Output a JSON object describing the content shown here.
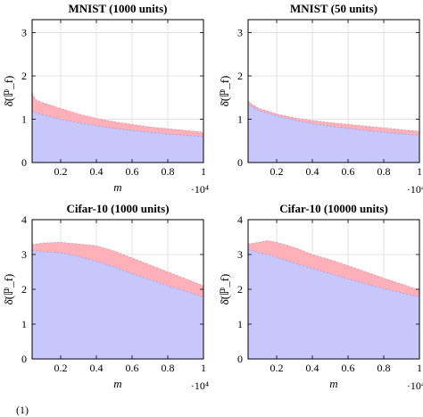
{
  "footnote": "(1)",
  "chart_data": [
    {
      "type": "area",
      "title": "MNIST (1000 units)",
      "xlabel": "m",
      "ylabel": "δ̄(ℙ_f)",
      "x_multiplier": "·10⁴",
      "xlim": [
        0.04,
        1.0
      ],
      "ylim": [
        0,
        3.3
      ],
      "xticks": [
        0.2,
        0.4,
        0.6,
        0.8,
        1
      ],
      "xtick_labels": [
        "0.2",
        "0.4",
        "0.6",
        "0.8",
        "1"
      ],
      "yticks": [
        0,
        1,
        2,
        3
      ],
      "ytick_labels": [
        "0",
        "1",
        "2",
        "3"
      ],
      "grid": true,
      "x": [
        0.04,
        0.06,
        0.1,
        0.2,
        0.3,
        0.4,
        0.5,
        0.6,
        0.7,
        0.8,
        0.9,
        1.0
      ],
      "series": [
        {
          "color": "#ffb0b8",
          "values": [
            1.6,
            1.45,
            1.38,
            1.25,
            1.12,
            1.02,
            0.94,
            0.88,
            0.82,
            0.78,
            0.74,
            0.7
          ]
        },
        {
          "color": "#c7c7fb",
          "values": [
            1.2,
            1.15,
            1.1,
            1.0,
            0.92,
            0.85,
            0.79,
            0.74,
            0.7,
            0.66,
            0.63,
            0.6
          ]
        }
      ]
    },
    {
      "type": "area",
      "title": "MNIST (50 units)",
      "xlabel": "",
      "ylabel": "δ̄(ℙ_f)",
      "x_multiplier": "·10⁴",
      "xlim": [
        0.04,
        1.0
      ],
      "ylim": [
        0,
        3.3
      ],
      "xticks": [
        0.2,
        0.4,
        0.6,
        0.8,
        1
      ],
      "xtick_labels": [
        "0.2",
        "0.4",
        "0.6",
        "0.8",
        "1"
      ],
      "yticks": [
        0,
        1,
        2,
        3
      ],
      "ytick_labels": [
        "0",
        "1",
        "2",
        "3"
      ],
      "grid": true,
      "x": [
        0.04,
        0.06,
        0.1,
        0.2,
        0.3,
        0.4,
        0.5,
        0.6,
        0.7,
        0.8,
        0.9,
        1.0
      ],
      "series": [
        {
          "color": "#ffb0b8",
          "values": [
            1.42,
            1.35,
            1.25,
            1.12,
            1.03,
            0.97,
            0.92,
            0.88,
            0.84,
            0.8,
            0.76,
            0.72
          ]
        },
        {
          "color": "#c7c7fb",
          "values": [
            1.35,
            1.3,
            1.2,
            1.08,
            0.98,
            0.9,
            0.84,
            0.79,
            0.74,
            0.7,
            0.66,
            0.63
          ]
        }
      ]
    },
    {
      "type": "area",
      "title": "Cifar-10 (1000 units)",
      "xlabel": "m",
      "ylabel": "δ̄(ℙ_f)",
      "x_multiplier": "·10⁴",
      "xlim": [
        0.04,
        1.0
      ],
      "ylim": [
        0,
        4
      ],
      "xticks": [
        0.2,
        0.4,
        0.6,
        0.8,
        1
      ],
      "xtick_labels": [
        "0.2",
        "0.4",
        "0.6",
        "0.8",
        "1"
      ],
      "yticks": [
        0,
        1,
        2,
        3,
        4
      ],
      "ytick_labels": [
        "0",
        "1",
        "2",
        "3",
        "4"
      ],
      "grid": true,
      "x": [
        0.04,
        0.1,
        0.2,
        0.3,
        0.4,
        0.5,
        0.6,
        0.7,
        0.8,
        0.9,
        1.0
      ],
      "series": [
        {
          "color": "#ffb0b8",
          "values": [
            3.28,
            3.33,
            3.35,
            3.3,
            3.25,
            3.1,
            2.9,
            2.7,
            2.5,
            2.3,
            2.1
          ]
        },
        {
          "color": "#c7c7fb",
          "values": [
            3.12,
            3.08,
            3.05,
            2.95,
            2.8,
            2.65,
            2.45,
            2.28,
            2.1,
            1.95,
            1.78
          ]
        }
      ]
    },
    {
      "type": "area",
      "title": "Cifar-10 (10000 units)",
      "xlabel": "m",
      "ylabel": "δ̄(ℙ_f)",
      "x_multiplier": "·10⁴",
      "xlim": [
        0.04,
        1.0
      ],
      "ylim": [
        0,
        4
      ],
      "xticks": [
        0.2,
        0.4,
        0.6,
        0.8,
        1
      ],
      "xtick_labels": [
        "0.2",
        "0.4",
        "0.6",
        "0.8",
        "1"
      ],
      "yticks": [
        0,
        1,
        2,
        3,
        4
      ],
      "ytick_labels": [
        "0",
        "1",
        "2",
        "3",
        "4"
      ],
      "grid": true,
      "x": [
        0.04,
        0.1,
        0.15,
        0.2,
        0.3,
        0.4,
        0.5,
        0.6,
        0.7,
        0.8,
        0.9,
        1.0
      ],
      "series": [
        {
          "color": "#ffb0b8",
          "values": [
            3.3,
            3.35,
            3.4,
            3.35,
            3.2,
            3.0,
            2.85,
            2.68,
            2.5,
            2.32,
            2.15,
            1.98
          ]
        },
        {
          "color": "#c7c7fb",
          "values": [
            3.15,
            3.05,
            3.0,
            2.92,
            2.75,
            2.6,
            2.45,
            2.3,
            2.15,
            2.02,
            1.9,
            1.78
          ]
        }
      ]
    }
  ]
}
